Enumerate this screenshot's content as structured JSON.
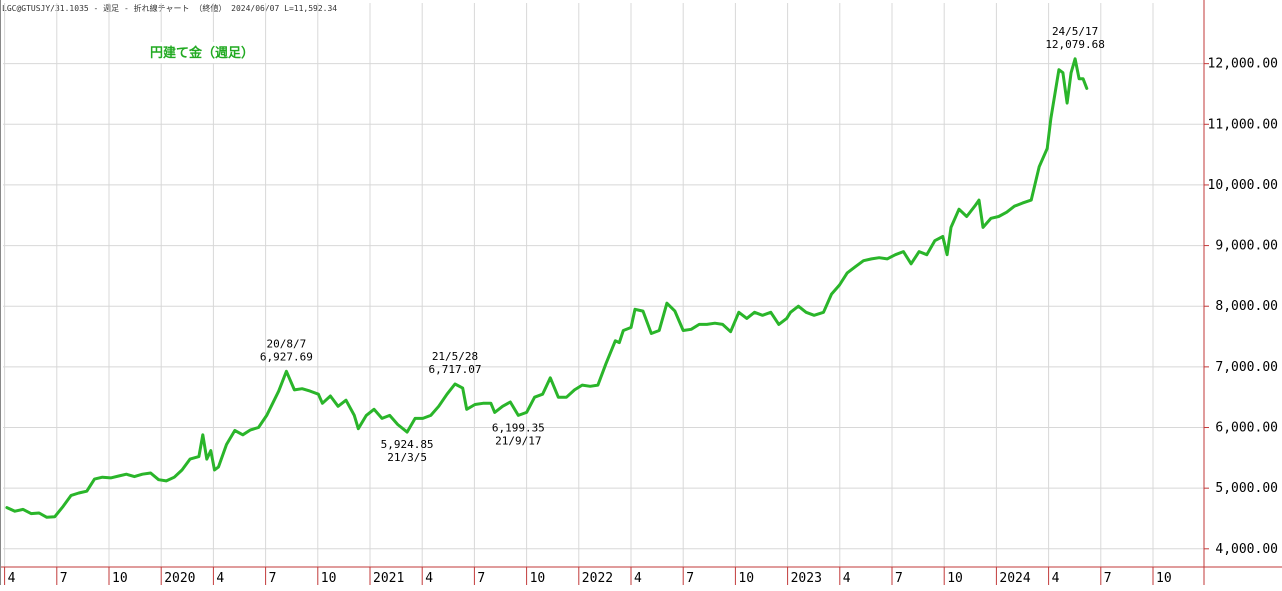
{
  "header": "LGC@GTUSJY/31.1035 - 週足 - 折れ線チャート （終値） 2024/06/07 L=11,592.34",
  "colors": {
    "line": "#2ab52a",
    "grid": "#d8d8d8",
    "axis": "#c23a3a",
    "title": "#22aa22"
  },
  "chart_data": {
    "type": "line",
    "title": "円建て金（週足）",
    "y_axis_side": "right",
    "ylim": [
      3700,
      13000
    ],
    "yticks": [
      4000,
      5000,
      6000,
      7000,
      8000,
      9000,
      10000,
      11000,
      12000
    ],
    "ytick_labels": [
      "4,000.00",
      "5,000.00",
      "6,000.00",
      "7,000.00",
      "8,000.00",
      "9,000.00",
      "10,000.00",
      "11,000.00",
      "12,000.00"
    ],
    "grid": true,
    "x_start": "2019-04",
    "x_end": "2024-11",
    "x_ticks": [
      {
        "label": "4",
        "date": "2019-04"
      },
      {
        "label": "7",
        "date": "2019-07"
      },
      {
        "label": "10",
        "date": "2019-10"
      },
      {
        "label": "2020",
        "date": "2020-01"
      },
      {
        "label": "4",
        "date": "2020-04"
      },
      {
        "label": "7",
        "date": "2020-07"
      },
      {
        "label": "10",
        "date": "2020-10"
      },
      {
        "label": "2021",
        "date": "2021-01"
      },
      {
        "label": "4",
        "date": "2021-04"
      },
      {
        "label": "7",
        "date": "2021-07"
      },
      {
        "label": "10",
        "date": "2021-10"
      },
      {
        "label": "2022",
        "date": "2022-01"
      },
      {
        "label": "4",
        "date": "2022-04"
      },
      {
        "label": "7",
        "date": "2022-07"
      },
      {
        "label": "10",
        "date": "2022-10"
      },
      {
        "label": "2023",
        "date": "2023-01"
      },
      {
        "label": "4",
        "date": "2023-04"
      },
      {
        "label": "7",
        "date": "2023-07"
      },
      {
        "label": "10",
        "date": "2023-10"
      },
      {
        "label": "2024",
        "date": "2024-01"
      },
      {
        "label": "4",
        "date": "2024-04"
      },
      {
        "label": "7",
        "date": "2024-07"
      },
      {
        "label": "10",
        "date": "2024-10"
      }
    ],
    "series": [
      {
        "points": [
          [
            "2019-04-05",
            4680
          ],
          [
            "2019-04-19",
            4620
          ],
          [
            "2019-05-03",
            4650
          ],
          [
            "2019-05-17",
            4580
          ],
          [
            "2019-05-31",
            4590
          ],
          [
            "2019-06-14",
            4520
          ],
          [
            "2019-06-28",
            4530
          ],
          [
            "2019-07-12",
            4700
          ],
          [
            "2019-07-26",
            4880
          ],
          [
            "2019-08-09",
            4920
          ],
          [
            "2019-08-23",
            4950
          ],
          [
            "2019-09-06",
            5150
          ],
          [
            "2019-09-20",
            5180
          ],
          [
            "2019-10-04",
            5170
          ],
          [
            "2019-10-18",
            5200
          ],
          [
            "2019-11-01",
            5230
          ],
          [
            "2019-11-15",
            5190
          ],
          [
            "2019-11-29",
            5230
          ],
          [
            "2019-12-13",
            5250
          ],
          [
            "2019-12-27",
            5140
          ],
          [
            "2020-01-10",
            5120
          ],
          [
            "2020-01-24",
            5180
          ],
          [
            "2020-02-07",
            5300
          ],
          [
            "2020-02-21",
            5480
          ],
          [
            "2020-03-06",
            5520
          ],
          [
            "2020-03-13",
            5880
          ],
          [
            "2020-03-20",
            5480
          ],
          [
            "2020-03-27",
            5620
          ],
          [
            "2020-04-03",
            5300
          ],
          [
            "2020-04-10",
            5350
          ],
          [
            "2020-04-24",
            5720
          ],
          [
            "2020-05-08",
            5950
          ],
          [
            "2020-05-22",
            5880
          ],
          [
            "2020-06-05",
            5960
          ],
          [
            "2020-06-19",
            6000
          ],
          [
            "2020-07-03",
            6200
          ],
          [
            "2020-07-24",
            6600
          ],
          [
            "2020-08-07",
            6927.69
          ],
          [
            "2020-08-21",
            6620
          ],
          [
            "2020-09-04",
            6640
          ],
          [
            "2020-09-18",
            6600
          ],
          [
            "2020-10-02",
            6550
          ],
          [
            "2020-10-09",
            6400
          ],
          [
            "2020-10-23",
            6520
          ],
          [
            "2020-11-06",
            6350
          ],
          [
            "2020-11-20",
            6450
          ],
          [
            "2020-12-04",
            6200
          ],
          [
            "2020-12-11",
            5980
          ],
          [
            "2020-12-25",
            6200
          ],
          [
            "2021-01-08",
            6300
          ],
          [
            "2021-01-22",
            6150
          ],
          [
            "2021-02-05",
            6200
          ],
          [
            "2021-02-19",
            6050
          ],
          [
            "2021-03-05",
            5924.85
          ],
          [
            "2021-03-19",
            6150
          ],
          [
            "2021-04-02",
            6150
          ],
          [
            "2021-04-16",
            6200
          ],
          [
            "2021-04-30",
            6350
          ],
          [
            "2021-05-14",
            6550
          ],
          [
            "2021-05-28",
            6717.07
          ],
          [
            "2021-06-11",
            6650
          ],
          [
            "2021-06-18",
            6300
          ],
          [
            "2021-07-02",
            6380
          ],
          [
            "2021-07-16",
            6400
          ],
          [
            "2021-07-30",
            6400
          ],
          [
            "2021-08-06",
            6250
          ],
          [
            "2021-08-20",
            6350
          ],
          [
            "2021-09-03",
            6420
          ],
          [
            "2021-09-17",
            6199.35
          ],
          [
            "2021-10-01",
            6250
          ],
          [
            "2021-10-15",
            6500
          ],
          [
            "2021-10-29",
            6550
          ],
          [
            "2021-11-12",
            6820
          ],
          [
            "2021-11-26",
            6500
          ],
          [
            "2021-12-10",
            6500
          ],
          [
            "2021-12-24",
            6620
          ],
          [
            "2022-01-07",
            6700
          ],
          [
            "2022-01-21",
            6680
          ],
          [
            "2022-02-04",
            6700
          ],
          [
            "2022-02-18",
            7050
          ],
          [
            "2022-03-04",
            7430
          ],
          [
            "2022-03-11",
            7400
          ],
          [
            "2022-03-18",
            7600
          ],
          [
            "2022-04-01",
            7650
          ],
          [
            "2022-04-08",
            7950
          ],
          [
            "2022-04-22",
            7920
          ],
          [
            "2022-05-06",
            7550
          ],
          [
            "2022-05-20",
            7600
          ],
          [
            "2022-06-03",
            8050
          ],
          [
            "2022-06-17",
            7920
          ],
          [
            "2022-07-01",
            7600
          ],
          [
            "2022-07-15",
            7620
          ],
          [
            "2022-07-29",
            7700
          ],
          [
            "2022-08-12",
            7700
          ],
          [
            "2022-08-26",
            7720
          ],
          [
            "2022-09-09",
            7700
          ],
          [
            "2022-09-23",
            7580
          ],
          [
            "2022-10-07",
            7900
          ],
          [
            "2022-10-21",
            7800
          ],
          [
            "2022-11-04",
            7900
          ],
          [
            "2022-11-18",
            7850
          ],
          [
            "2022-12-02",
            7900
          ],
          [
            "2022-12-16",
            7700
          ],
          [
            "2022-12-30",
            7800
          ],
          [
            "2023-01-06",
            7900
          ],
          [
            "2023-01-20",
            8000
          ],
          [
            "2023-02-03",
            7900
          ],
          [
            "2023-02-17",
            7850
          ],
          [
            "2023-03-03",
            7900
          ],
          [
            "2023-03-17",
            8200
          ],
          [
            "2023-03-31",
            8350
          ],
          [
            "2023-04-14",
            8550
          ],
          [
            "2023-04-28",
            8650
          ],
          [
            "2023-05-12",
            8750
          ],
          [
            "2023-05-26",
            8780
          ],
          [
            "2023-06-09",
            8800
          ],
          [
            "2023-06-23",
            8780
          ],
          [
            "2023-07-07",
            8850
          ],
          [
            "2023-07-21",
            8900
          ],
          [
            "2023-08-04",
            8700
          ],
          [
            "2023-08-18",
            8900
          ],
          [
            "2023-09-01",
            8850
          ],
          [
            "2023-09-15",
            9080
          ],
          [
            "2023-09-29",
            9150
          ],
          [
            "2023-10-06",
            8850
          ],
          [
            "2023-10-13",
            9300
          ],
          [
            "2023-10-27",
            9600
          ],
          [
            "2023-11-10",
            9480
          ],
          [
            "2023-11-24",
            9650
          ],
          [
            "2023-12-01",
            9750
          ],
          [
            "2023-12-08",
            9300
          ],
          [
            "2023-12-22",
            9450
          ],
          [
            "2024-01-05",
            9480
          ],
          [
            "2024-01-19",
            9550
          ],
          [
            "2024-02-02",
            9650
          ],
          [
            "2024-02-16",
            9700
          ],
          [
            "2024-03-01",
            9750
          ],
          [
            "2024-03-15",
            10300
          ],
          [
            "2024-03-29",
            10600
          ],
          [
            "2024-04-05",
            11100
          ],
          [
            "2024-04-12",
            11500
          ],
          [
            "2024-04-19",
            11900
          ],
          [
            "2024-04-26",
            11850
          ],
          [
            "2024-05-03",
            11350
          ],
          [
            "2024-05-10",
            11850
          ],
          [
            "2024-05-17",
            12079.68
          ],
          [
            "2024-05-24",
            11750
          ],
          [
            "2024-05-31",
            11750
          ],
          [
            "2024-06-07",
            11592.34
          ]
        ]
      }
    ],
    "annotations": [
      {
        "date": "2020-08-07",
        "value": 6927.69,
        "lines": [
          "20/8/7",
          "6,927.69"
        ],
        "position": "above"
      },
      {
        "date": "2021-03-05",
        "value": 5924.85,
        "lines": [
          "5,924.85",
          "21/3/5"
        ],
        "position": "below"
      },
      {
        "date": "2021-05-28",
        "value": 6717.07,
        "lines": [
          "21/5/28",
          "6,717.07"
        ],
        "position": "above"
      },
      {
        "date": "2021-09-17",
        "value": 6199.35,
        "lines": [
          "6,199.35",
          "21/9/17"
        ],
        "position": "below"
      },
      {
        "date": "2024-05-17",
        "value": 12079.68,
        "lines": [
          "24/5/17",
          "12,079.68"
        ],
        "position": "above"
      }
    ]
  }
}
